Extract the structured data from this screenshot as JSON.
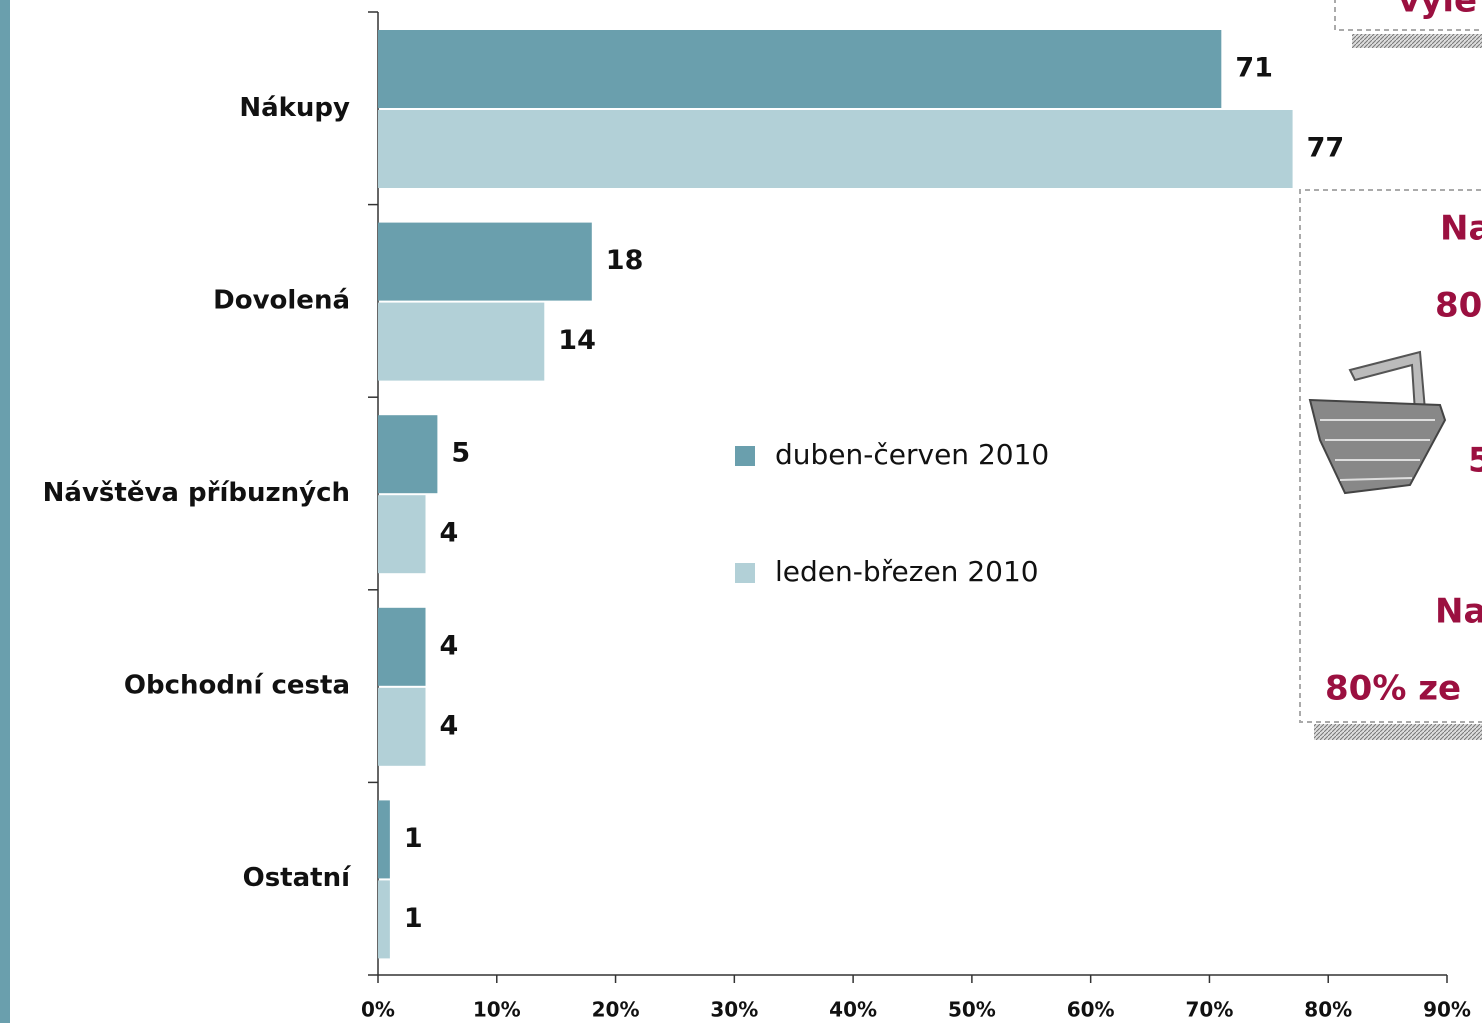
{
  "chart_data": {
    "type": "hbar",
    "categories": [
      "Nákupy",
      "Dovolená",
      "Návštěva příbuzných",
      "Obchodní cesta",
      "Ostatní"
    ],
    "series": [
      {
        "name": "duben-červen 2010",
        "color": "#6a9fad",
        "values": [
          71,
          18,
          5,
          4,
          1
        ]
      },
      {
        "name": "leden-březen 2010",
        "color": "#b2d0d7",
        "values": [
          77,
          14,
          4,
          4,
          1
        ]
      }
    ],
    "xlim": [
      0,
      90
    ],
    "xticks": [
      {
        "value": 0,
        "label": "0%"
      },
      {
        "value": 10,
        "label": "10%"
      },
      {
        "value": 20,
        "label": "20%"
      },
      {
        "value": 30,
        "label": "30%"
      },
      {
        "value": 40,
        "label": "40%"
      },
      {
        "value": 50,
        "label": "50%"
      },
      {
        "value": 60,
        "label": "60%"
      },
      {
        "value": 70,
        "label": "70%"
      },
      {
        "value": 80,
        "label": "80%"
      },
      {
        "value": 90,
        "label": "90%"
      }
    ],
    "annotations": [
      "vyle",
      "Na",
      "80",
      "5",
      "Na",
      "80% ze"
    ]
  }
}
